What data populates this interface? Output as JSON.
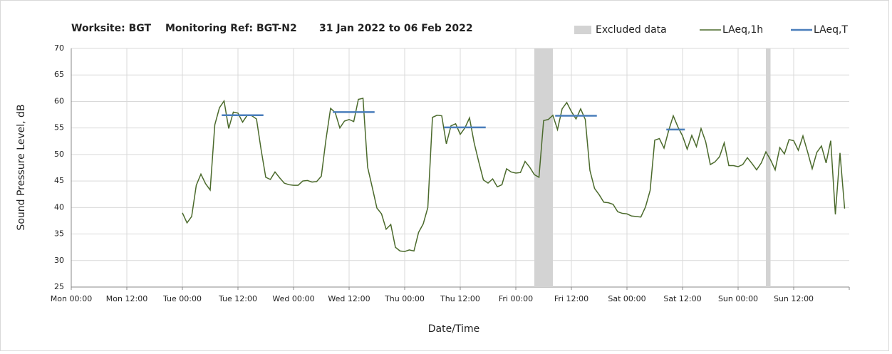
{
  "chart_data": {
    "type": "line",
    "title_parts": [
      "Worksite: BGT",
      "Monitoring Ref: BGT-N2",
      "31 Jan 2022 to 06 Feb 2022"
    ],
    "xlabel": "Date/Time",
    "ylabel": "Sound Pressure Level, dB",
    "xlim": [
      0,
      168
    ],
    "xticks": [
      {
        "value": 0,
        "label": "Mon 00:00"
      },
      {
        "value": 12,
        "label": "Mon 12:00"
      },
      {
        "value": 24,
        "label": "Tue 00:00"
      },
      {
        "value": 36,
        "label": "Tue 12:00"
      },
      {
        "value": 48,
        "label": "Wed 00:00"
      },
      {
        "value": 60,
        "label": "Wed 12:00"
      },
      {
        "value": 72,
        "label": "Thu 00:00"
      },
      {
        "value": 84,
        "label": "Thu 12:00"
      },
      {
        "value": 96,
        "label": "Fri 00:00"
      },
      {
        "value": 108,
        "label": "Fri 12:00"
      },
      {
        "value": 120,
        "label": "Sat 00:00"
      },
      {
        "value": 132,
        "label": "Sat 12:00"
      },
      {
        "value": 144,
        "label": "Sun 00:00"
      },
      {
        "value": 156,
        "label": "Sun 12:00"
      }
    ],
    "ylim": [
      25,
      70
    ],
    "yticks": [
      25,
      30,
      35,
      40,
      45,
      50,
      55,
      60,
      65,
      70
    ],
    "grid": true,
    "legend": "top-right",
    "excluded": {
      "name": "Excluded data",
      "color": "#d3d3d3",
      "ranges": [
        [
          100,
          104
        ],
        [
          150,
          151
        ]
      ]
    },
    "x": [
      24,
      25,
      26,
      27,
      28,
      29,
      30,
      31,
      32,
      33,
      34,
      35,
      36,
      37,
      38,
      39,
      40,
      41,
      42,
      43,
      44,
      45,
      46,
      47,
      48,
      49,
      50,
      51,
      52,
      53,
      54,
      55,
      56,
      57,
      58,
      59,
      60,
      61,
      62,
      63,
      64,
      65,
      66,
      67,
      68,
      69,
      70,
      71,
      72,
      73,
      74,
      75,
      76,
      77,
      78,
      79,
      80,
      81,
      82,
      83,
      84,
      85,
      86,
      87,
      88,
      89,
      90,
      91,
      92,
      93,
      94,
      95,
      96,
      97,
      98,
      99,
      100,
      101,
      102,
      103,
      104,
      105,
      106,
      107,
      108,
      109,
      110,
      111,
      112,
      113,
      114,
      115,
      116,
      117,
      118,
      119,
      120,
      121,
      122,
      123,
      124,
      125,
      126,
      127,
      128,
      129,
      130,
      131,
      132,
      133,
      134,
      135,
      136,
      137,
      138,
      139,
      140,
      141,
      142,
      143,
      144,
      145,
      146,
      147,
      148,
      149,
      150,
      151,
      152,
      153,
      154,
      155,
      156,
      157,
      158,
      159,
      160,
      161,
      162,
      163,
      164,
      165,
      166,
      167
    ],
    "series": [
      {
        "name": "LAeq,1h",
        "color": "#4b6a2c",
        "values": [
          39,
          37.1,
          38.3,
          44.2,
          46.3,
          44.5,
          43.3,
          55.6,
          58.8,
          60.1,
          54.9,
          58.0,
          57.8,
          56.1,
          57.4,
          57.3,
          56.7,
          50.9,
          45.7,
          45.3,
          46.7,
          45.6,
          44.6,
          44.3,
          44.2,
          44.2,
          45.0,
          45.1,
          44.8,
          44.9,
          45.9,
          52.8,
          58.7,
          57.9,
          55.0,
          56.3,
          56.6,
          56.2,
          60.4,
          60.6,
          47.6,
          43.8,
          39.9,
          38.8,
          35.9,
          36.8,
          32.5,
          31.8,
          31.7,
          32.0,
          31.8,
          35.3,
          36.9,
          40.0,
          57.0,
          57.4,
          57.3,
          52.0,
          55.4,
          55.8,
          53.8,
          55.0,
          56.9,
          52.2,
          48.6,
          45.2,
          44.6,
          45.4,
          43.9,
          44.3,
          47.3,
          46.7,
          46.5,
          46.6,
          48.7,
          47.6,
          46.2,
          45.7,
          56.4,
          56.6,
          57.4,
          54.7,
          58.6,
          59.8,
          58.1,
          56.7,
          58.6,
          56.6,
          47.0,
          43.6,
          42.4,
          41.0,
          40.9,
          40.6,
          39.2,
          38.9,
          38.8,
          38.4,
          38.3,
          38.2,
          40.1,
          43.2,
          52.7,
          53.0,
          51.2,
          54.5,
          57.3,
          55.2,
          53.5,
          51.0,
          53.6,
          51.5,
          54.9,
          52.4,
          48.1,
          48.6,
          49.6,
          52.2,
          47.9,
          47.9,
          47.7,
          48.1,
          49.4,
          48.3,
          47.1,
          48.4,
          50.5,
          49.0,
          47.1,
          51.3,
          50.1,
          52.8,
          52.6,
          50.8,
          53.5,
          50.5,
          47.3,
          50.4,
          51.6,
          48.4,
          52.6,
          38.7,
          50.3,
          39.8
        ]
      },
      {
        "name": "LAeq,T",
        "color": "#4a7ebb",
        "segments": [
          {
            "start": 32.5,
            "end": 41.5,
            "value": 57.4
          },
          {
            "start": 56.5,
            "end": 65.5,
            "value": 58.0
          },
          {
            "start": 80.5,
            "end": 89.5,
            "value": 55.1
          },
          {
            "start": 104.5,
            "end": 113.5,
            "value": 57.3
          },
          {
            "start": 128.5,
            "end": 132.5,
            "value": 54.7
          }
        ]
      }
    ]
  }
}
